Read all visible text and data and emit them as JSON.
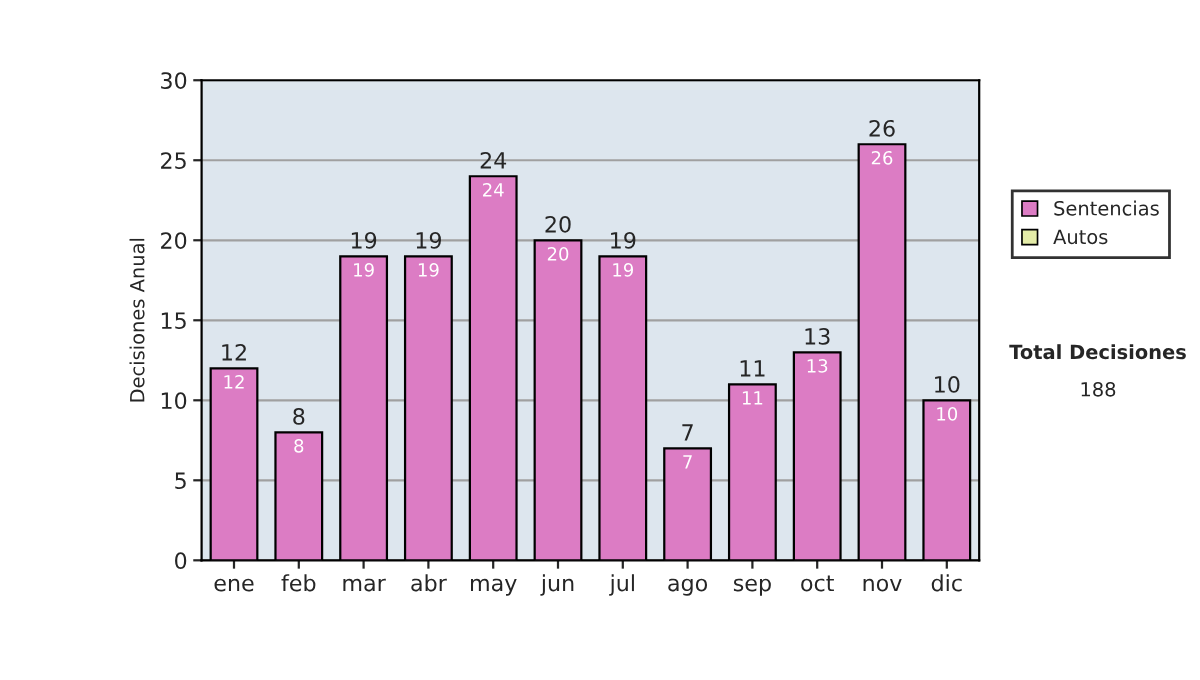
{
  "chart_data": {
    "type": "bar",
    "ylabel": "Decisiones Anual",
    "categories": [
      "ene",
      "feb",
      "mar",
      "abr",
      "may",
      "jun",
      "jul",
      "ago",
      "sep",
      "oct",
      "nov",
      "dic"
    ],
    "series": [
      {
        "name": "Sentencias",
        "color": "#dc7cc4",
        "values": [
          12,
          8,
          19,
          19,
          24,
          20,
          19,
          7,
          11,
          13,
          26,
          10
        ]
      },
      {
        "name": "Autos",
        "color": "#e4eca8",
        "values": [
          null,
          null,
          null,
          null,
          null,
          null,
          null,
          null,
          null,
          null,
          null,
          null
        ]
      }
    ],
    "totals": [
      "12",
      "8",
      "19",
      "19",
      "24",
      "20",
      "19",
      "7",
      "11",
      "13",
      "26",
      "10"
    ],
    "data_labels": true,
    "ylim": [
      0,
      30
    ],
    "yticks": [
      0,
      5,
      10,
      15,
      20,
      25,
      30
    ],
    "grid": "y",
    "legend": "right",
    "annotations": [
      "Total Decisiones",
      "188"
    ]
  }
}
